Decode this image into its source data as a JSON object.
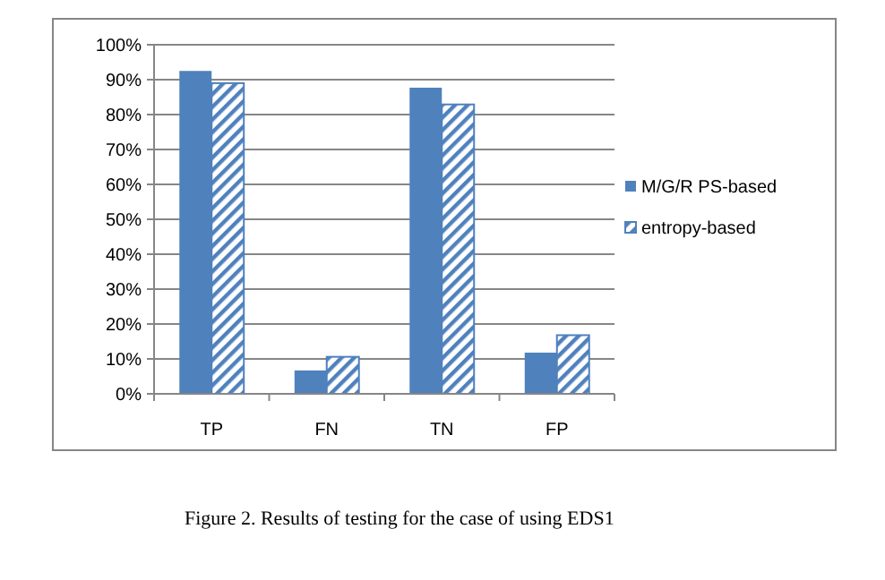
{
  "chart_data": {
    "type": "bar",
    "categories": [
      "TP",
      "FN",
      "TN",
      "FP"
    ],
    "series": [
      {
        "name": "M/G/R PS-based",
        "color": "#4f81bd",
        "values": [
          92.5,
          6.7,
          87.7,
          11.8
        ]
      },
      {
        "name": "entropy-based",
        "color": "#4f81bd",
        "values": [
          89,
          10.6,
          82.9,
          16.8
        ]
      }
    ],
    "ylim": [
      0,
      100
    ],
    "yticks": [
      {
        "value": 0,
        "label": "0%"
      },
      {
        "value": 10,
        "label": "10%"
      },
      {
        "value": 20,
        "label": "20%"
      },
      {
        "value": 30,
        "label": "30%"
      },
      {
        "value": 40,
        "label": "40%"
      },
      {
        "value": 50,
        "label": "50%"
      },
      {
        "value": 60,
        "label": "60%"
      },
      {
        "value": 70,
        "label": "70%"
      },
      {
        "value": 80,
        "label": "80%"
      },
      {
        "value": 90,
        "label": "90%"
      },
      {
        "value": 100,
        "label": "100%"
      }
    ],
    "grid": "y",
    "legend": "right",
    "annotations": [
      "Figure 2. Results of testing for the case of using EDS1"
    ]
  }
}
